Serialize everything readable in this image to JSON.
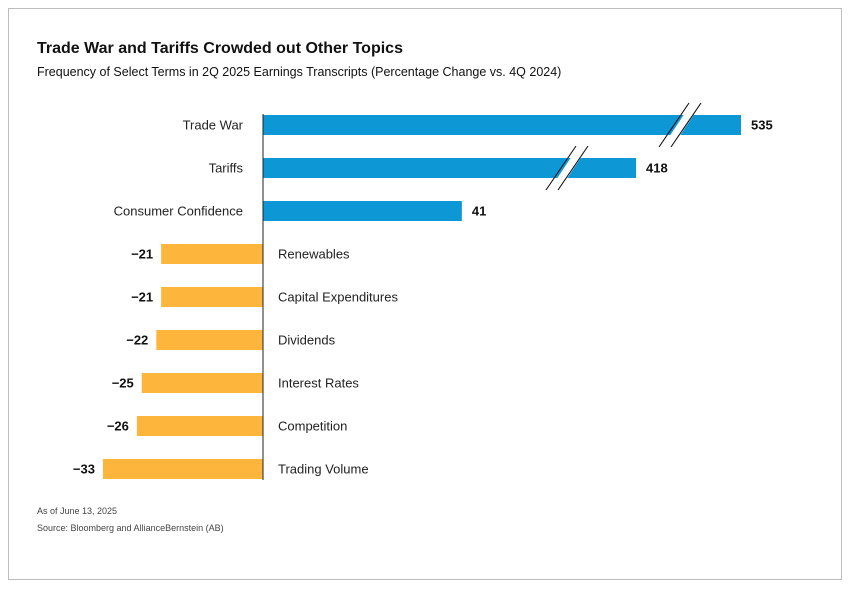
{
  "chart_data": {
    "type": "bar",
    "orientation": "horizontal",
    "title": "Trade War and Tariffs Crowded out Other Topics",
    "subtitle": "Frequency of Select Terms in 2Q 2025 Earnings Transcripts (Percentage Change vs. 4Q 2024)",
    "categories": [
      "Trade War",
      "Tariffs",
      "Consumer Confidence",
      "Renewables",
      "Capital Expenditures",
      "Dividends",
      "Interest Rates",
      "Competition",
      "Trading Volume"
    ],
    "values": [
      535,
      418,
      41,
      -21,
      -21,
      -22,
      -25,
      -26,
      -33
    ],
    "value_labels": [
      "535",
      "418",
      "41",
      "−21",
      "−21",
      "−22",
      "−25",
      "−26",
      "−33"
    ],
    "axis_break": true,
    "grid": false,
    "legend": "none",
    "colors": {
      "positive": "#0d98d5",
      "negative": "#fdb53b",
      "axis": "#222222"
    }
  },
  "notes": {
    "date": "As of June 13, 2025",
    "source": "Source: Bloomberg and AllianceBernstein (AB)"
  }
}
